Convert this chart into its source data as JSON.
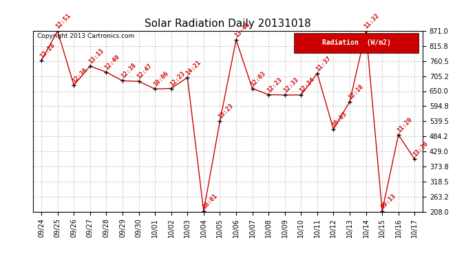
{
  "title": "Solar Radiation Daily 20131018",
  "copyright_text": "Copyright 2013 Cartronics.com",
  "legend_label": "Radiation  (W/m2)",
  "dates": [
    "09/24",
    "09/25",
    "09/26",
    "09/27",
    "09/28",
    "09/29",
    "09/30",
    "10/01",
    "10/02",
    "10/03",
    "10/04",
    "10/05",
    "10/06",
    "10/07",
    "10/08",
    "10/09",
    "10/10",
    "10/11",
    "10/12",
    "10/13",
    "10/14",
    "10/15",
    "10/16",
    "10/17"
  ],
  "values": [
    762,
    871,
    672,
    742,
    720,
    688,
    686,
    658,
    660,
    700,
    210,
    540,
    838,
    660,
    637,
    636,
    636,
    715,
    510,
    612,
    871,
    210,
    490,
    400
  ],
  "labels": [
    "12:28",
    "12:51",
    "12:36",
    "13:13",
    "12:49",
    "12:38",
    "12:47",
    "10:06",
    "12:23",
    "14:21",
    "16:01",
    "13:23",
    "13:46",
    "12:03",
    "12:23",
    "12:33",
    "12:34",
    "11:37",
    "10:03",
    "12:18",
    "11:32",
    "09:13",
    "11:20",
    "13:20"
  ],
  "ylim": [
    208.0,
    871.0
  ],
  "yticks": [
    208.0,
    263.2,
    318.5,
    373.8,
    429.0,
    484.2,
    539.5,
    594.8,
    650.0,
    705.2,
    760.5,
    815.8,
    871.0
  ],
  "line_color": "#cc0000",
  "marker_color": "#000000",
  "bg_color": "#ffffff",
  "grid_color": "#c8c8c8",
  "title_fontsize": 11,
  "label_fontsize": 6.5,
  "tick_fontsize": 7,
  "legend_bg": "#cc0000",
  "legend_text_color": "#ffffff"
}
